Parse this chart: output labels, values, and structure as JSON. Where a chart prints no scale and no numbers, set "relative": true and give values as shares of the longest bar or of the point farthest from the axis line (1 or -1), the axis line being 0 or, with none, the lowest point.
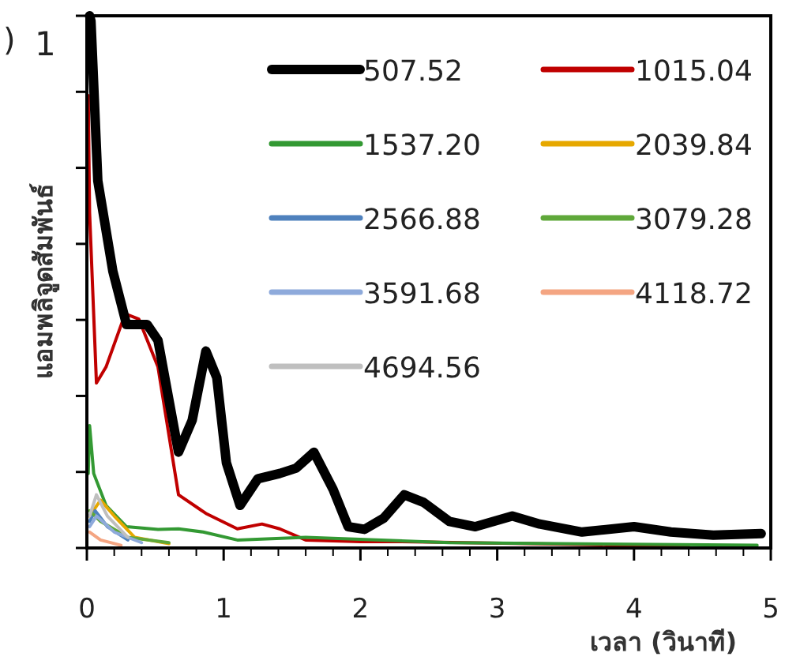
{
  "chart_data": {
    "type": "line",
    "relative": true,
    "xlabel": "เวลา (วินาที)",
    "ylabel": "แอมพลิจูดสัมพันธ์",
    "annotations": [
      ")",
      "1"
    ],
    "xlim": [
      0,
      5
    ],
    "xticks": [
      0,
      1,
      2,
      3,
      4,
      5
    ],
    "legend": "top right",
    "line_style": "solid",
    "marker": "none",
    "grid": false,
    "series": [
      {
        "name": "507.52",
        "color": "#000000",
        "x": [
          0.02,
          0.03,
          0.08,
          0.19,
          0.29,
          0.44,
          0.52,
          0.67,
          0.77,
          0.87,
          0.95,
          1.02,
          1.12,
          1.25,
          1.41,
          1.53,
          1.66,
          1.8,
          1.91,
          2.03,
          2.17,
          2.32,
          2.46,
          2.65,
          2.84,
          3.11,
          3.31,
          3.62,
          4.0,
          4.27,
          4.58,
          4.93
        ],
        "values": [
          1.0,
          0.99,
          0.69,
          0.52,
          0.42,
          0.42,
          0.39,
          0.18,
          0.24,
          0.37,
          0.32,
          0.16,
          0.08,
          0.13,
          0.14,
          0.15,
          0.18,
          0.11,
          0.04,
          0.035,
          0.056,
          0.1,
          0.086,
          0.05,
          0.04,
          0.06,
          0.045,
          0.03,
          0.04,
          0.03,
          0.024,
          0.027
        ]
      },
      {
        "name": "1015.04",
        "color": "#c00000",
        "x": [
          0.01,
          0.02,
          0.07,
          0.14,
          0.28,
          0.38,
          0.52,
          0.67,
          0.87,
          1.1,
          1.28,
          1.41,
          1.6,
          2.0,
          2.26,
          3.04,
          3.8,
          4.4
        ],
        "values": [
          0.85,
          0.63,
          0.31,
          0.34,
          0.44,
          0.43,
          0.34,
          0.1,
          0.065,
          0.036,
          0.045,
          0.036,
          0.015,
          0.012,
          0.012,
          0.009,
          0.006,
          0.005
        ]
      },
      {
        "name": "1537.20",
        "color": "#339933",
        "x": [
          0.01,
          0.02,
          0.05,
          0.14,
          0.29,
          0.52,
          0.67,
          0.85,
          1.1,
          1.6,
          2.65,
          4.9
        ],
        "values": [
          0.14,
          0.23,
          0.14,
          0.08,
          0.04,
          0.035,
          0.036,
          0.03,
          0.015,
          0.02,
          0.01,
          0.005
        ]
      },
      {
        "name": "2039.84",
        "color": "#e6a800",
        "x": [
          0.02,
          0.1,
          0.2,
          0.35,
          0.6
        ],
        "values": [
          0.06,
          0.09,
          0.06,
          0.02,
          0.008
        ]
      },
      {
        "name": "2566.88",
        "color": "#4f81bd",
        "x": [
          0.02,
          0.06,
          0.15,
          0.3
        ],
        "values": [
          0.05,
          0.07,
          0.04,
          0.015
        ]
      },
      {
        "name": "3079.28",
        "color": "#5fa83a",
        "x": [
          0.02,
          0.1,
          0.3,
          0.6
        ],
        "values": [
          0.07,
          0.05,
          0.02,
          0.01
        ]
      },
      {
        "name": "3591.68",
        "color": "#8eaadb",
        "x": [
          0.02,
          0.07,
          0.2,
          0.4
        ],
        "values": [
          0.04,
          0.06,
          0.03,
          0.01
        ]
      },
      {
        "name": "4118.72",
        "color": "#f4a582",
        "x": [
          0.02,
          0.1,
          0.25
        ],
        "values": [
          0.03,
          0.015,
          0.005
        ]
      },
      {
        "name": "4694.56",
        "color": "#bfbfbf",
        "x": [
          0.02,
          0.07,
          0.15,
          0.3
        ],
        "values": [
          0.06,
          0.1,
          0.06,
          0.02
        ]
      }
    ]
  }
}
